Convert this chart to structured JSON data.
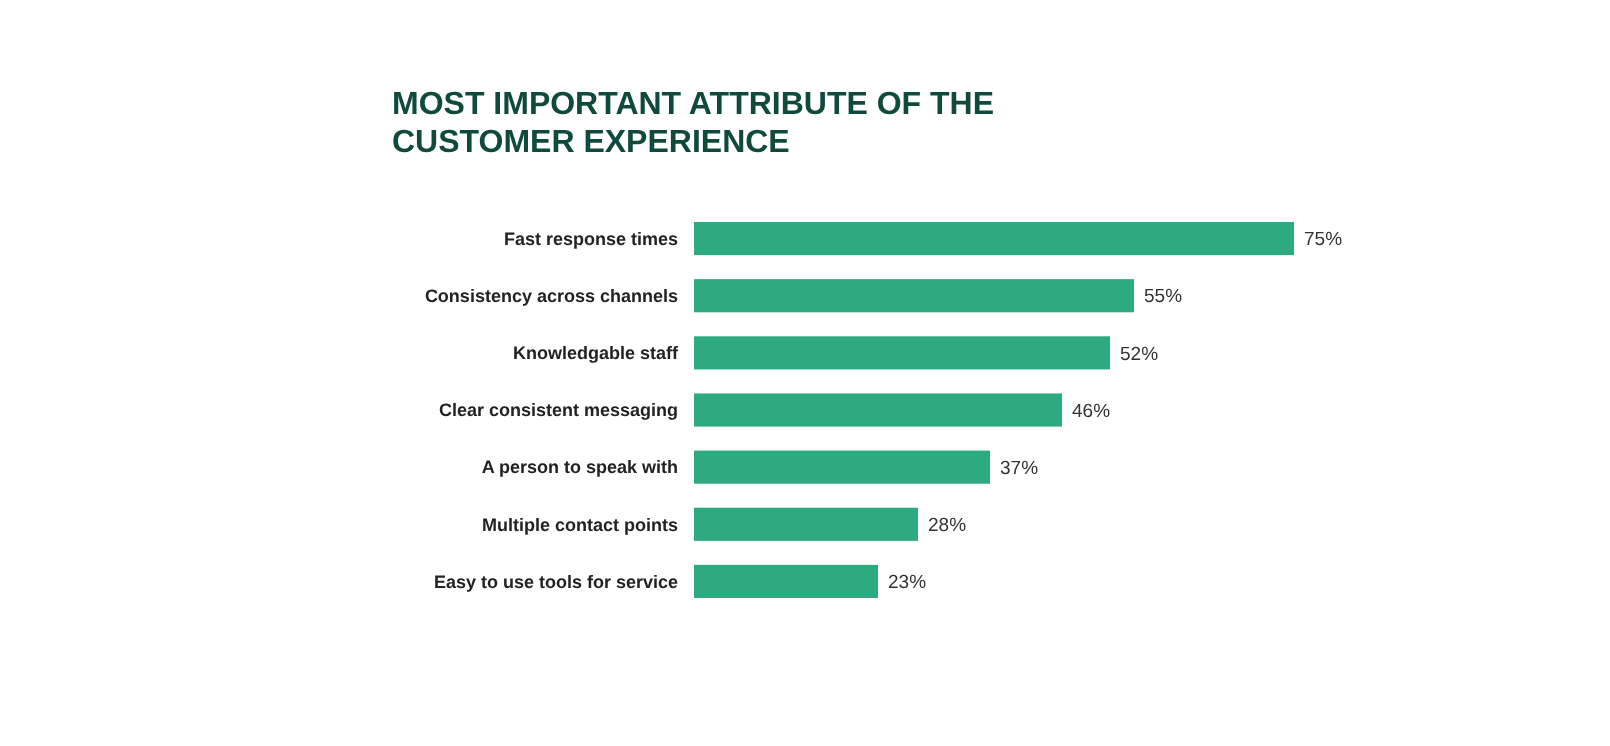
{
  "chart_data": {
    "type": "bar",
    "orientation": "horizontal",
    "title": "MOST IMPORTANT ATTRIBUTE OF THE CUSTOMER EXPERIENCE",
    "categories": [
      "Fast response times",
      "Consistency across channels",
      "Knowledgable staff",
      "Clear consistent messaging",
      "A person to speak with",
      "Multiple contact points",
      "Easy to use tools for service"
    ],
    "values": [
      75,
      55,
      52,
      46,
      37,
      28,
      23
    ],
    "value_labels": [
      "75%",
      "55%",
      "52%",
      "46%",
      "37%",
      "28%",
      "23%"
    ],
    "color": "#2eaa80"
  }
}
